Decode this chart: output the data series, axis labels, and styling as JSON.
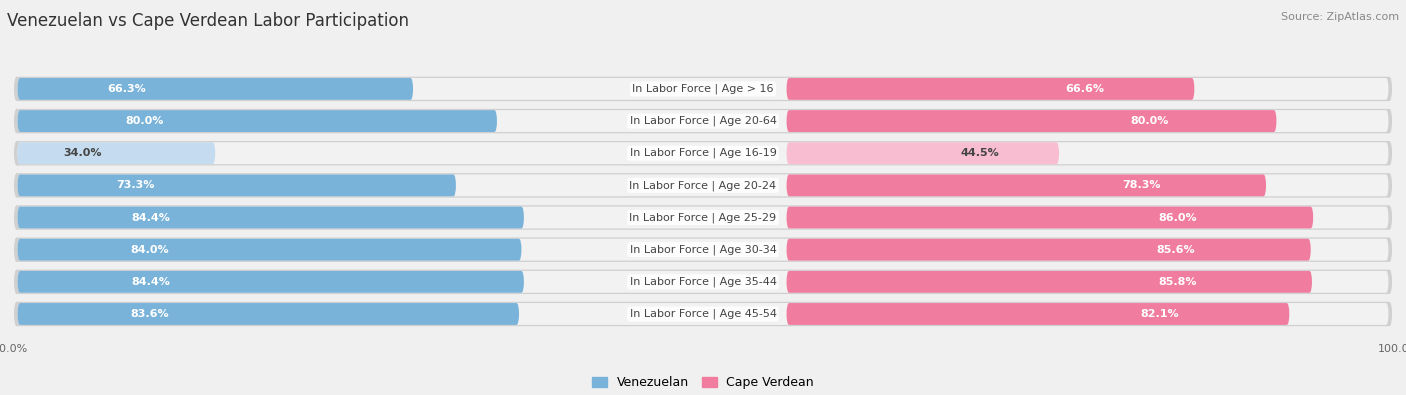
{
  "title": "Venezuelan vs Cape Verdean Labor Participation",
  "source": "Source: ZipAtlas.com",
  "categories": [
    "In Labor Force | Age > 16",
    "In Labor Force | Age 20-64",
    "In Labor Force | Age 16-19",
    "In Labor Force | Age 20-24",
    "In Labor Force | Age 25-29",
    "In Labor Force | Age 30-34",
    "In Labor Force | Age 35-44",
    "In Labor Force | Age 45-54"
  ],
  "venezuelan": [
    66.3,
    80.0,
    34.0,
    73.3,
    84.4,
    84.0,
    84.4,
    83.6
  ],
  "cape_verdean": [
    66.6,
    80.0,
    44.5,
    78.3,
    86.0,
    85.6,
    85.8,
    82.1
  ],
  "venezuelan_color": "#7ab3d9",
  "venezuelan_color_light": "#c5dcf0",
  "cape_verdean_color": "#f07ca0",
  "cape_verdean_color_light": "#f9bdd2",
  "background_color": "#f0f0f0",
  "row_bg_color": "#e8e8e8",
  "row_inner_color": "#f8f8f8",
  "max_value": 100.0,
  "legend_venezuelan": "Venezuelan",
  "legend_cape_verdean": "Cape Verdean",
  "title_fontsize": 12,
  "label_fontsize": 8,
  "value_fontsize": 8,
  "source_fontsize": 8
}
